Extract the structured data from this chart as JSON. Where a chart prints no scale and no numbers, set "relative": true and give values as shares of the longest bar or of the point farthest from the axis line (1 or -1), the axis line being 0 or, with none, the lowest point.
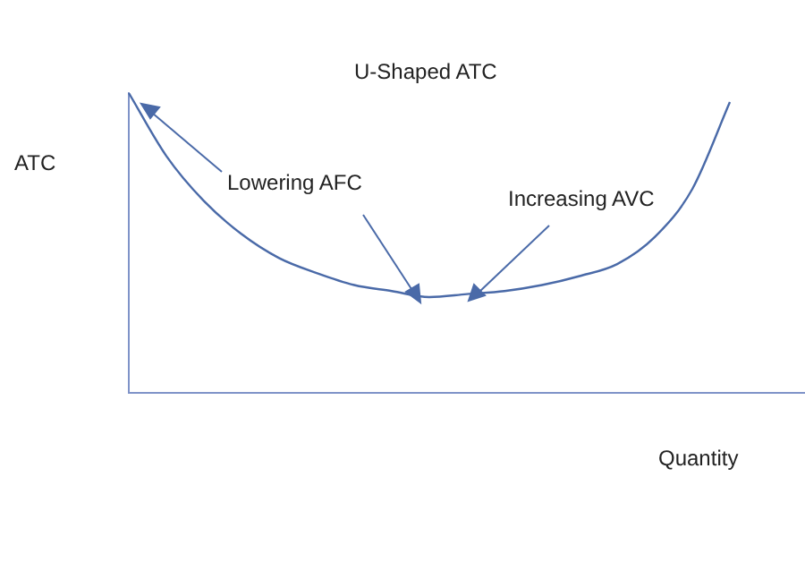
{
  "chart_data": {
    "type": "line",
    "title": "U-Shaped ATC",
    "ylabel": "ATC",
    "xlabel": "Quantity",
    "relative": true,
    "categories": [
      null,
      null,
      null,
      null,
      null,
      null,
      null,
      null,
      null,
      null,
      null,
      null,
      null,
      null,
      null,
      null,
      null,
      null,
      null
    ],
    "series": [
      {
        "color": "#4a6aa8",
        "values": [
          1,
          0.79,
          0.64,
          0.53,
          0.45,
          0.4,
          0.36,
          0.34,
          0.32,
          0.33,
          0.34,
          0.36,
          0.39,
          0.43,
          0.52,
          0.68,
          0.97,
          null,
          null
        ]
      }
    ],
    "annotations": [
      "Lowering AFC",
      "Increasing AVC"
    ],
    "grid": false,
    "legend": false,
    "marker": "none",
    "line_style": "solid"
  }
}
